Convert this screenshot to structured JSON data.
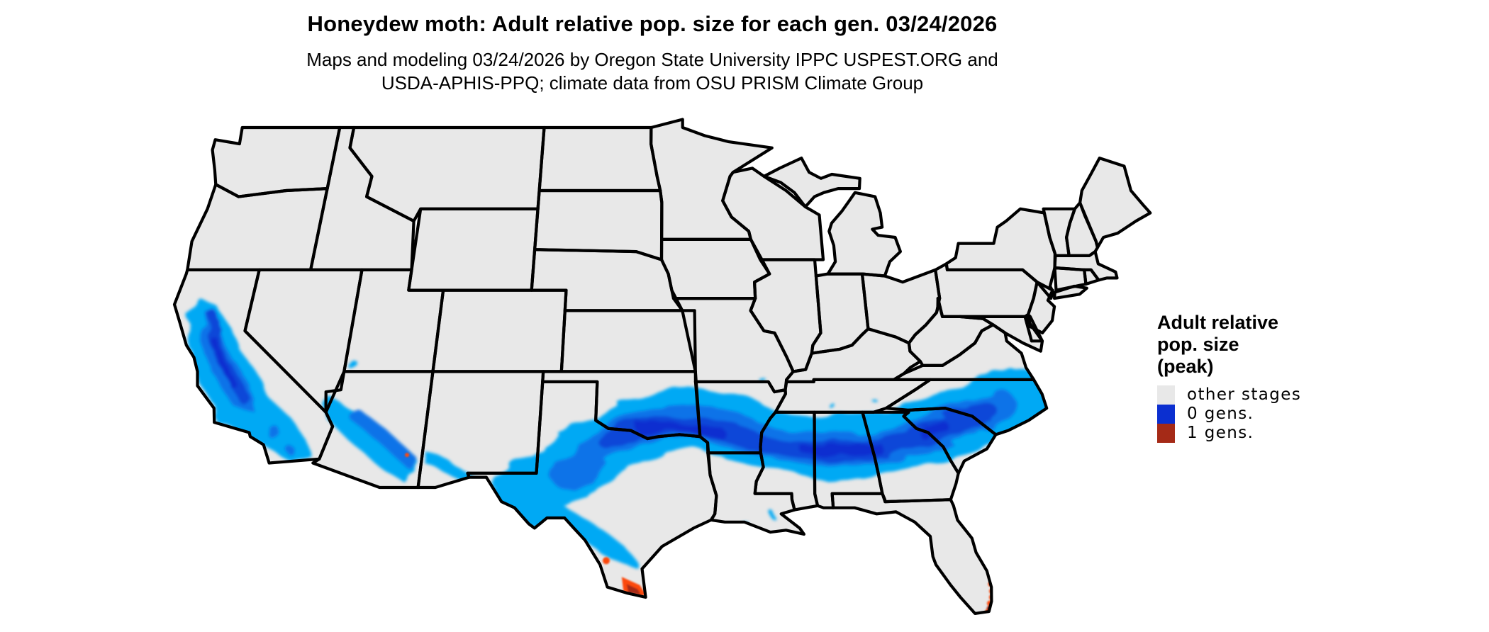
{
  "header": {
    "title": "Honeydew moth: Adult relative pop. size for each gen. 03/24/2026",
    "subtitle_line1": "Maps and modeling 03/24/2026 by Oregon State University IPPC USPEST.ORG and",
    "subtitle_line2": "USDA-APHIS-PPQ; climate data from OSU PRISM Climate Group"
  },
  "legend": {
    "title_line1": "Adult relative",
    "title_line2": "pop. size",
    "title_line3": "(peak)",
    "items": [
      {
        "key": "other-stages",
        "label": "other stages",
        "color": "#e8e8e8"
      },
      {
        "key": "gen-0",
        "label": "0 gens.",
        "color": "#0b2fd0"
      },
      {
        "key": "gen-1",
        "label": "1 gens.",
        "color": "#a52a17"
      }
    ]
  },
  "map": {
    "background": "#ffffff",
    "state_fill": "#e8e8e8",
    "state_border": "#000000",
    "classes": [
      {
        "label": "0 gens.",
        "colors": [
          "#00a9f4",
          "#0873e8",
          "#0b46d8",
          "#0d2fd0"
        ],
        "areas": "California Central Valley and southern coast; central Arizona; southern New Mexico and far west Texas; broad band from central Texas and southern Oklahoma across Arkansas, northern Louisiana, Mississippi, Alabama, Georgia, South Carolina and coastal North Carolina"
      },
      {
        "label": "1 gens.",
        "colors": [
          "#fc4a0d",
          "#a52a17"
        ],
        "areas": "southern tip of Texas (Rio Grande Valley); southeast Florida coast and Florida Keys"
      }
    ]
  }
}
